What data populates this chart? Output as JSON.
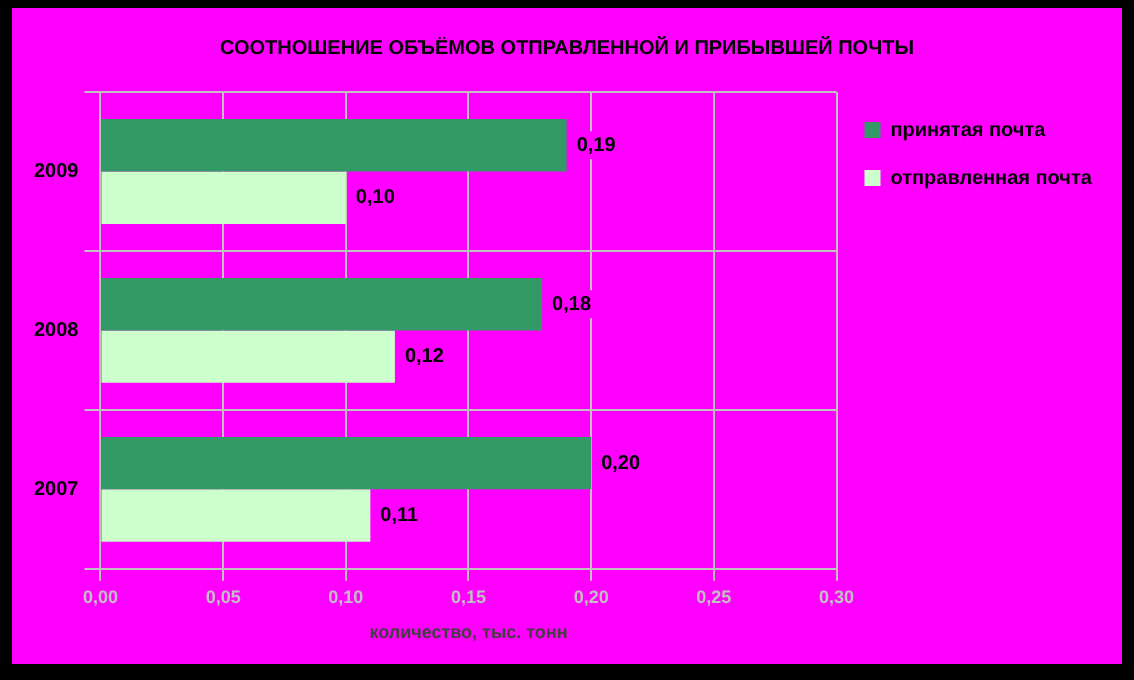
{
  "chart_data": {
    "type": "bar",
    "orientation": "horizontal",
    "title": "СООТНОШЕНИЕ ОБЪЁМОВ ОТПРАВЛЕННОЙ И ПРИБЫВШЕЙ ПОЧТЫ",
    "xlabel": "количество, тыс. тонн",
    "categories": [
      "2009",
      "2008",
      "2007"
    ],
    "series": [
      {
        "name": "принятая почта",
        "color": "#339966",
        "values": [
          0.19,
          0.18,
          0.2
        ],
        "value_labels": [
          "0,19",
          "0,18",
          "0,20"
        ]
      },
      {
        "name": "отправленная почта",
        "color": "#ccffcc",
        "values": [
          0.1,
          0.12,
          0.11
        ],
        "value_labels": [
          "0,10",
          "0,12",
          "0,11"
        ]
      }
    ],
    "xlim": [
      0,
      0.3
    ],
    "xticks": [
      {
        "value": 0,
        "label": "0,00"
      },
      {
        "value": 0.05,
        "label": "0,05"
      },
      {
        "value": 0.1,
        "label": "0,10"
      },
      {
        "value": 0.15,
        "label": "0,15"
      },
      {
        "value": 0.2,
        "label": "0,20"
      },
      {
        "value": 0.25,
        "label": "0,25"
      },
      {
        "value": 0.3,
        "label": "0,30"
      }
    ],
    "grid": true,
    "legend": "top right"
  }
}
